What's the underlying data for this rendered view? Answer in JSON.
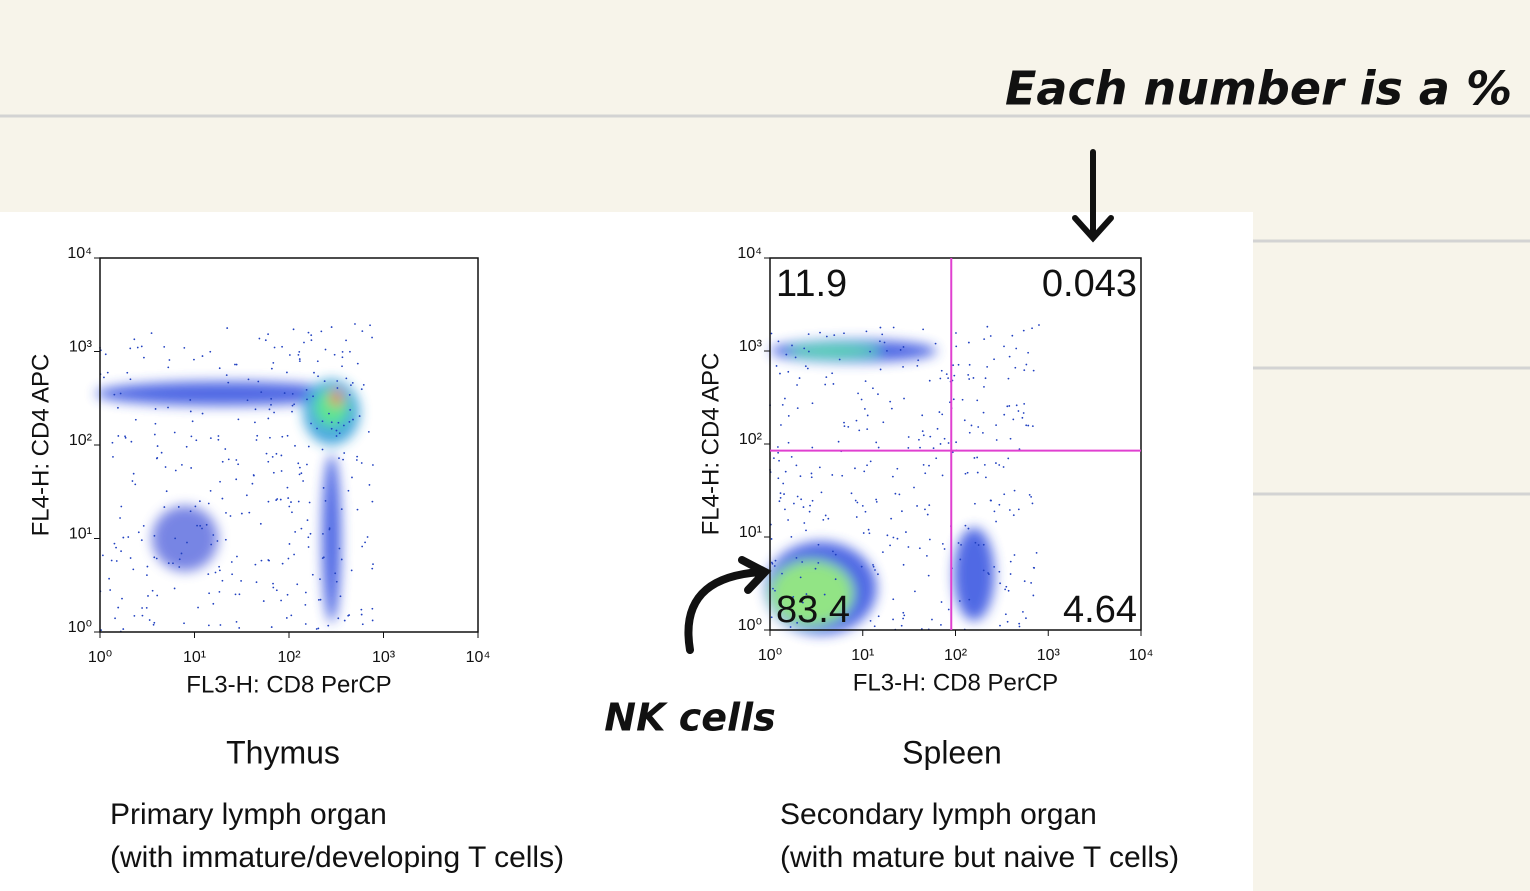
{
  "notes": {
    "heading": "Each number is a %",
    "nk_label": "NK cells"
  },
  "chart_data": [
    {
      "type": "scatter",
      "title": "Thymus",
      "xlabel": "FL3-H: CD8 PerCP",
      "ylabel": "FL4-H: CD4 APC",
      "log_scale": true,
      "xlim": [
        1,
        10000
      ],
      "ylim": [
        1,
        10000
      ],
      "xticks": [
        {
          "value": 1,
          "label": "10⁰"
        },
        {
          "value": 10,
          "label": "10¹"
        },
        {
          "value": 100,
          "label": "10²"
        },
        {
          "value": 1000,
          "label": "10³"
        },
        {
          "value": 10000,
          "label": "10⁴"
        }
      ],
      "yticks": [
        {
          "value": 1,
          "label": "10⁰"
        },
        {
          "value": 10,
          "label": "10¹"
        },
        {
          "value": 100,
          "label": "10²"
        },
        {
          "value": 1000,
          "label": "10³"
        },
        {
          "value": 10000,
          "label": "10⁴"
        }
      ],
      "caption": [
        "Primary lymph organ",
        "(with immature/developing T cells)"
      ]
    },
    {
      "type": "scatter",
      "title": "Spleen",
      "xlabel": "FL3-H: CD8 PerCP",
      "ylabel": "FL4-H: CD4 APC",
      "log_scale": true,
      "xlim": [
        1,
        10000
      ],
      "ylim": [
        1,
        10000
      ],
      "xticks": [
        {
          "value": 1,
          "label": "10⁰"
        },
        {
          "value": 10,
          "label": "10¹"
        },
        {
          "value": 100,
          "label": "10²"
        },
        {
          "value": 1000,
          "label": "10³"
        },
        {
          "value": 10000,
          "label": "10⁴"
        }
      ],
      "yticks": [
        {
          "value": 1,
          "label": "10⁰"
        },
        {
          "value": 10,
          "label": "10¹"
        },
        {
          "value": 100,
          "label": "10²"
        },
        {
          "value": 1000,
          "label": "10³"
        },
        {
          "value": 10000,
          "label": "10⁴"
        }
      ],
      "gate": {
        "x": 90,
        "y": 85,
        "color": "#e040d0"
      },
      "quadrants": [
        11.9,
        0.043,
        83.4,
        4.64
      ],
      "caption": [
        "Secondary lymph organ",
        "(with mature but naive T cells)"
      ]
    }
  ]
}
